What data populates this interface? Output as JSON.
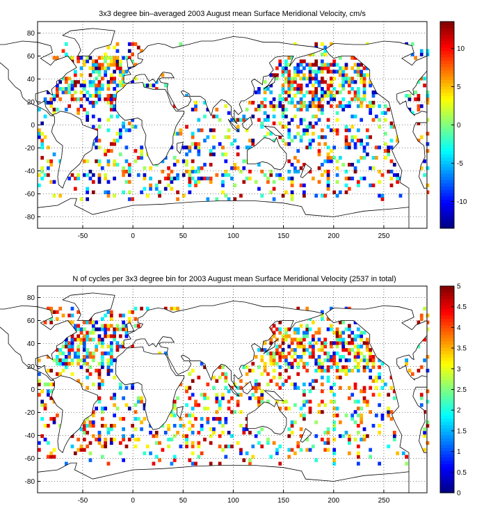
{
  "chart_data": [
    {
      "type": "heatmap",
      "title": "3x3 degree bin–averaged 2003 August mean Surface Meridional Velocity, cm/s",
      "xlabel": "",
      "ylabel": "",
      "xlim": [
        -95,
        293
      ],
      "ylim": [
        -90,
        90
      ],
      "xticks": [
        -50,
        0,
        50,
        100,
        150,
        200,
        250
      ],
      "yticks": [
        -80,
        -60,
        -40,
        -20,
        0,
        20,
        40,
        60,
        80
      ],
      "grid": true,
      "bin_size_deg": 3,
      "colorbar": {
        "min": -13.5,
        "max": 13.5,
        "ticks": [
          -10,
          -5,
          0,
          5,
          10
        ],
        "colormap": "jet"
      },
      "cell_seed": 1
    },
    {
      "type": "heatmap",
      "title": "N of cycles per 3x3 degree bin for 2003 August mean Surface Meridional Velocity (2537 in total)",
      "xlabel": "",
      "ylabel": "",
      "xlim": [
        -95,
        293
      ],
      "ylim": [
        -90,
        90
      ],
      "xticks": [
        -50,
        0,
        50,
        100,
        150,
        200,
        250
      ],
      "yticks": [
        -80,
        -60,
        -40,
        -20,
        0,
        20,
        40,
        60,
        80
      ],
      "grid": true,
      "bin_size_deg": 3,
      "total_cycles": 2537,
      "colorbar": {
        "min": 0,
        "max": 5,
        "ticks": [
          0,
          0.5,
          1,
          1.5,
          2,
          2.5,
          3,
          3.5,
          4,
          4.5,
          5
        ],
        "colormap": "jet"
      },
      "cell_seed": 7
    }
  ],
  "colors": {
    "axis": "#000000",
    "grid": "#000000",
    "background": "#ffffff"
  }
}
